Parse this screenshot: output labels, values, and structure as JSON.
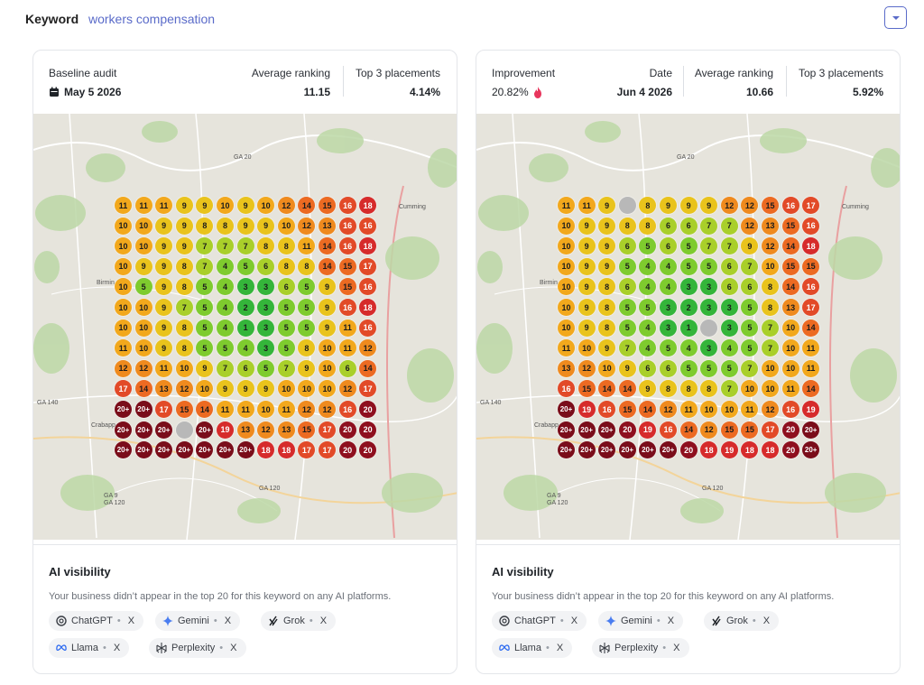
{
  "keyword": {
    "label": "Keyword",
    "value": "workers compensation"
  },
  "colors": {
    "accent": "#5a6bc9"
  },
  "left": {
    "baseline_label": "Baseline audit",
    "date": "May 5 2026",
    "avg_label": "Average ranking",
    "avg_value": "11.15",
    "top3_label": "Top 3 placements",
    "top3_value": "4.14%",
    "grid": [
      [
        "11",
        "11",
        "11",
        "9",
        "9",
        "10",
        "9",
        "10",
        "12",
        "14",
        "15",
        "16",
        "18"
      ],
      [
        "10",
        "10",
        "9",
        "9",
        "8",
        "8",
        "9",
        "9",
        "10",
        "12",
        "13",
        "16",
        "16"
      ],
      [
        "10",
        "10",
        "9",
        "9",
        "7",
        "7",
        "7",
        "8",
        "8",
        "11",
        "14",
        "16",
        "18"
      ],
      [
        "10",
        "9",
        "9",
        "8",
        "7",
        "4",
        "5",
        "6",
        "8",
        "8",
        "14",
        "15",
        "17"
      ],
      [
        "10",
        "5",
        "9",
        "8",
        "5",
        "4",
        "3",
        "3",
        "6",
        "5",
        "9",
        "15",
        "16"
      ],
      [
        "10",
        "10",
        "9",
        "7",
        "5",
        "4",
        "2",
        "3",
        "5",
        "5",
        "9",
        "16",
        "18"
      ],
      [
        "10",
        "10",
        "9",
        "8",
        "5",
        "4",
        "1",
        "3",
        "5",
        "5",
        "9",
        "11",
        "16"
      ],
      [
        "11",
        "10",
        "9",
        "8",
        "5",
        "5",
        "4",
        "3",
        "5",
        "8",
        "10",
        "11",
        "12"
      ],
      [
        "12",
        "12",
        "11",
        "10",
        "9",
        "7",
        "6",
        "5",
        "7",
        "9",
        "10",
        "6",
        "14"
      ],
      [
        "17",
        "14",
        "13",
        "12",
        "10",
        "9",
        "9",
        "9",
        "10",
        "10",
        "10",
        "12",
        "17"
      ],
      [
        "20+",
        "20+",
        "17",
        "15",
        "14",
        "11",
        "11",
        "10",
        "11",
        "12",
        "12",
        "16",
        "20"
      ],
      [
        "20+",
        "20+",
        "20+",
        "",
        "20+",
        "19",
        "13",
        "12",
        "13",
        "15",
        "17",
        "20",
        "20"
      ],
      [
        "20+",
        "20+",
        "20+",
        "20+",
        "20+",
        "20+",
        "20+",
        "18",
        "18",
        "17",
        "17",
        "20",
        "20"
      ]
    ]
  },
  "right": {
    "improvement_label": "Improvement",
    "improvement_value": "20.82%",
    "date_label": "Date",
    "date": "Jun 4 2026",
    "avg_label": "Average ranking",
    "avg_value": "10.66",
    "top3_label": "Top 3 placements",
    "top3_value": "5.92%",
    "grid": [
      [
        "11",
        "11",
        "9",
        "",
        "8",
        "9",
        "9",
        "9",
        "12",
        "12",
        "15",
        "16",
        "17"
      ],
      [
        "10",
        "9",
        "9",
        "8",
        "8",
        "6",
        "6",
        "7",
        "7",
        "12",
        "13",
        "15",
        "16"
      ],
      [
        "10",
        "9",
        "9",
        "6",
        "5",
        "6",
        "5",
        "7",
        "7",
        "9",
        "12",
        "14",
        "18"
      ],
      [
        "10",
        "9",
        "9",
        "5",
        "4",
        "4",
        "5",
        "5",
        "6",
        "7",
        "10",
        "15",
        "15"
      ],
      [
        "10",
        "9",
        "8",
        "6",
        "4",
        "4",
        "3",
        "3",
        "6",
        "6",
        "8",
        "14",
        "16"
      ],
      [
        "10",
        "9",
        "8",
        "5",
        "5",
        "3",
        "2",
        "3",
        "3",
        "5",
        "8",
        "13",
        "17"
      ],
      [
        "10",
        "9",
        "8",
        "5",
        "4",
        "3",
        "1",
        "",
        "3",
        "5",
        "7",
        "10",
        "14"
      ],
      [
        "11",
        "10",
        "9",
        "7",
        "4",
        "5",
        "4",
        "3",
        "4",
        "5",
        "7",
        "10",
        "11"
      ],
      [
        "13",
        "12",
        "10",
        "9",
        "6",
        "6",
        "5",
        "5",
        "5",
        "7",
        "10",
        "10",
        "11"
      ],
      [
        "16",
        "15",
        "14",
        "14",
        "9",
        "8",
        "8",
        "8",
        "7",
        "10",
        "10",
        "11",
        "14"
      ],
      [
        "20+",
        "19",
        "16",
        "15",
        "14",
        "12",
        "11",
        "10",
        "10",
        "11",
        "12",
        "16",
        "19"
      ],
      [
        "20+",
        "20+",
        "20+",
        "20",
        "19",
        "16",
        "14",
        "12",
        "15",
        "15",
        "17",
        "20",
        "20+"
      ],
      [
        "20+",
        "20+",
        "20+",
        "20+",
        "20+",
        "20+",
        "20",
        "18",
        "19",
        "18",
        "18",
        "20",
        "20+"
      ]
    ]
  },
  "map_places": [
    "GA 20",
    "Cumming",
    "Birmin",
    "GA 140",
    "Crabapp",
    "GA 9",
    "GA 120",
    "GA 120"
  ],
  "ai": {
    "title": "AI visibility",
    "description": "Your business didn’t appear in the top 20 for this keyword on any AI platforms.",
    "platforms": [
      {
        "name": "ChatGPT",
        "icon": "chatgpt-icon",
        "status": "X"
      },
      {
        "name": "Gemini",
        "icon": "gemini-icon",
        "status": "X"
      },
      {
        "name": "Grok",
        "icon": "grok-icon",
        "status": "X"
      },
      {
        "name": "Llama",
        "icon": "llama-icon",
        "status": "X"
      },
      {
        "name": "Perplexity",
        "icon": "perplexity-icon",
        "status": "X"
      }
    ]
  }
}
